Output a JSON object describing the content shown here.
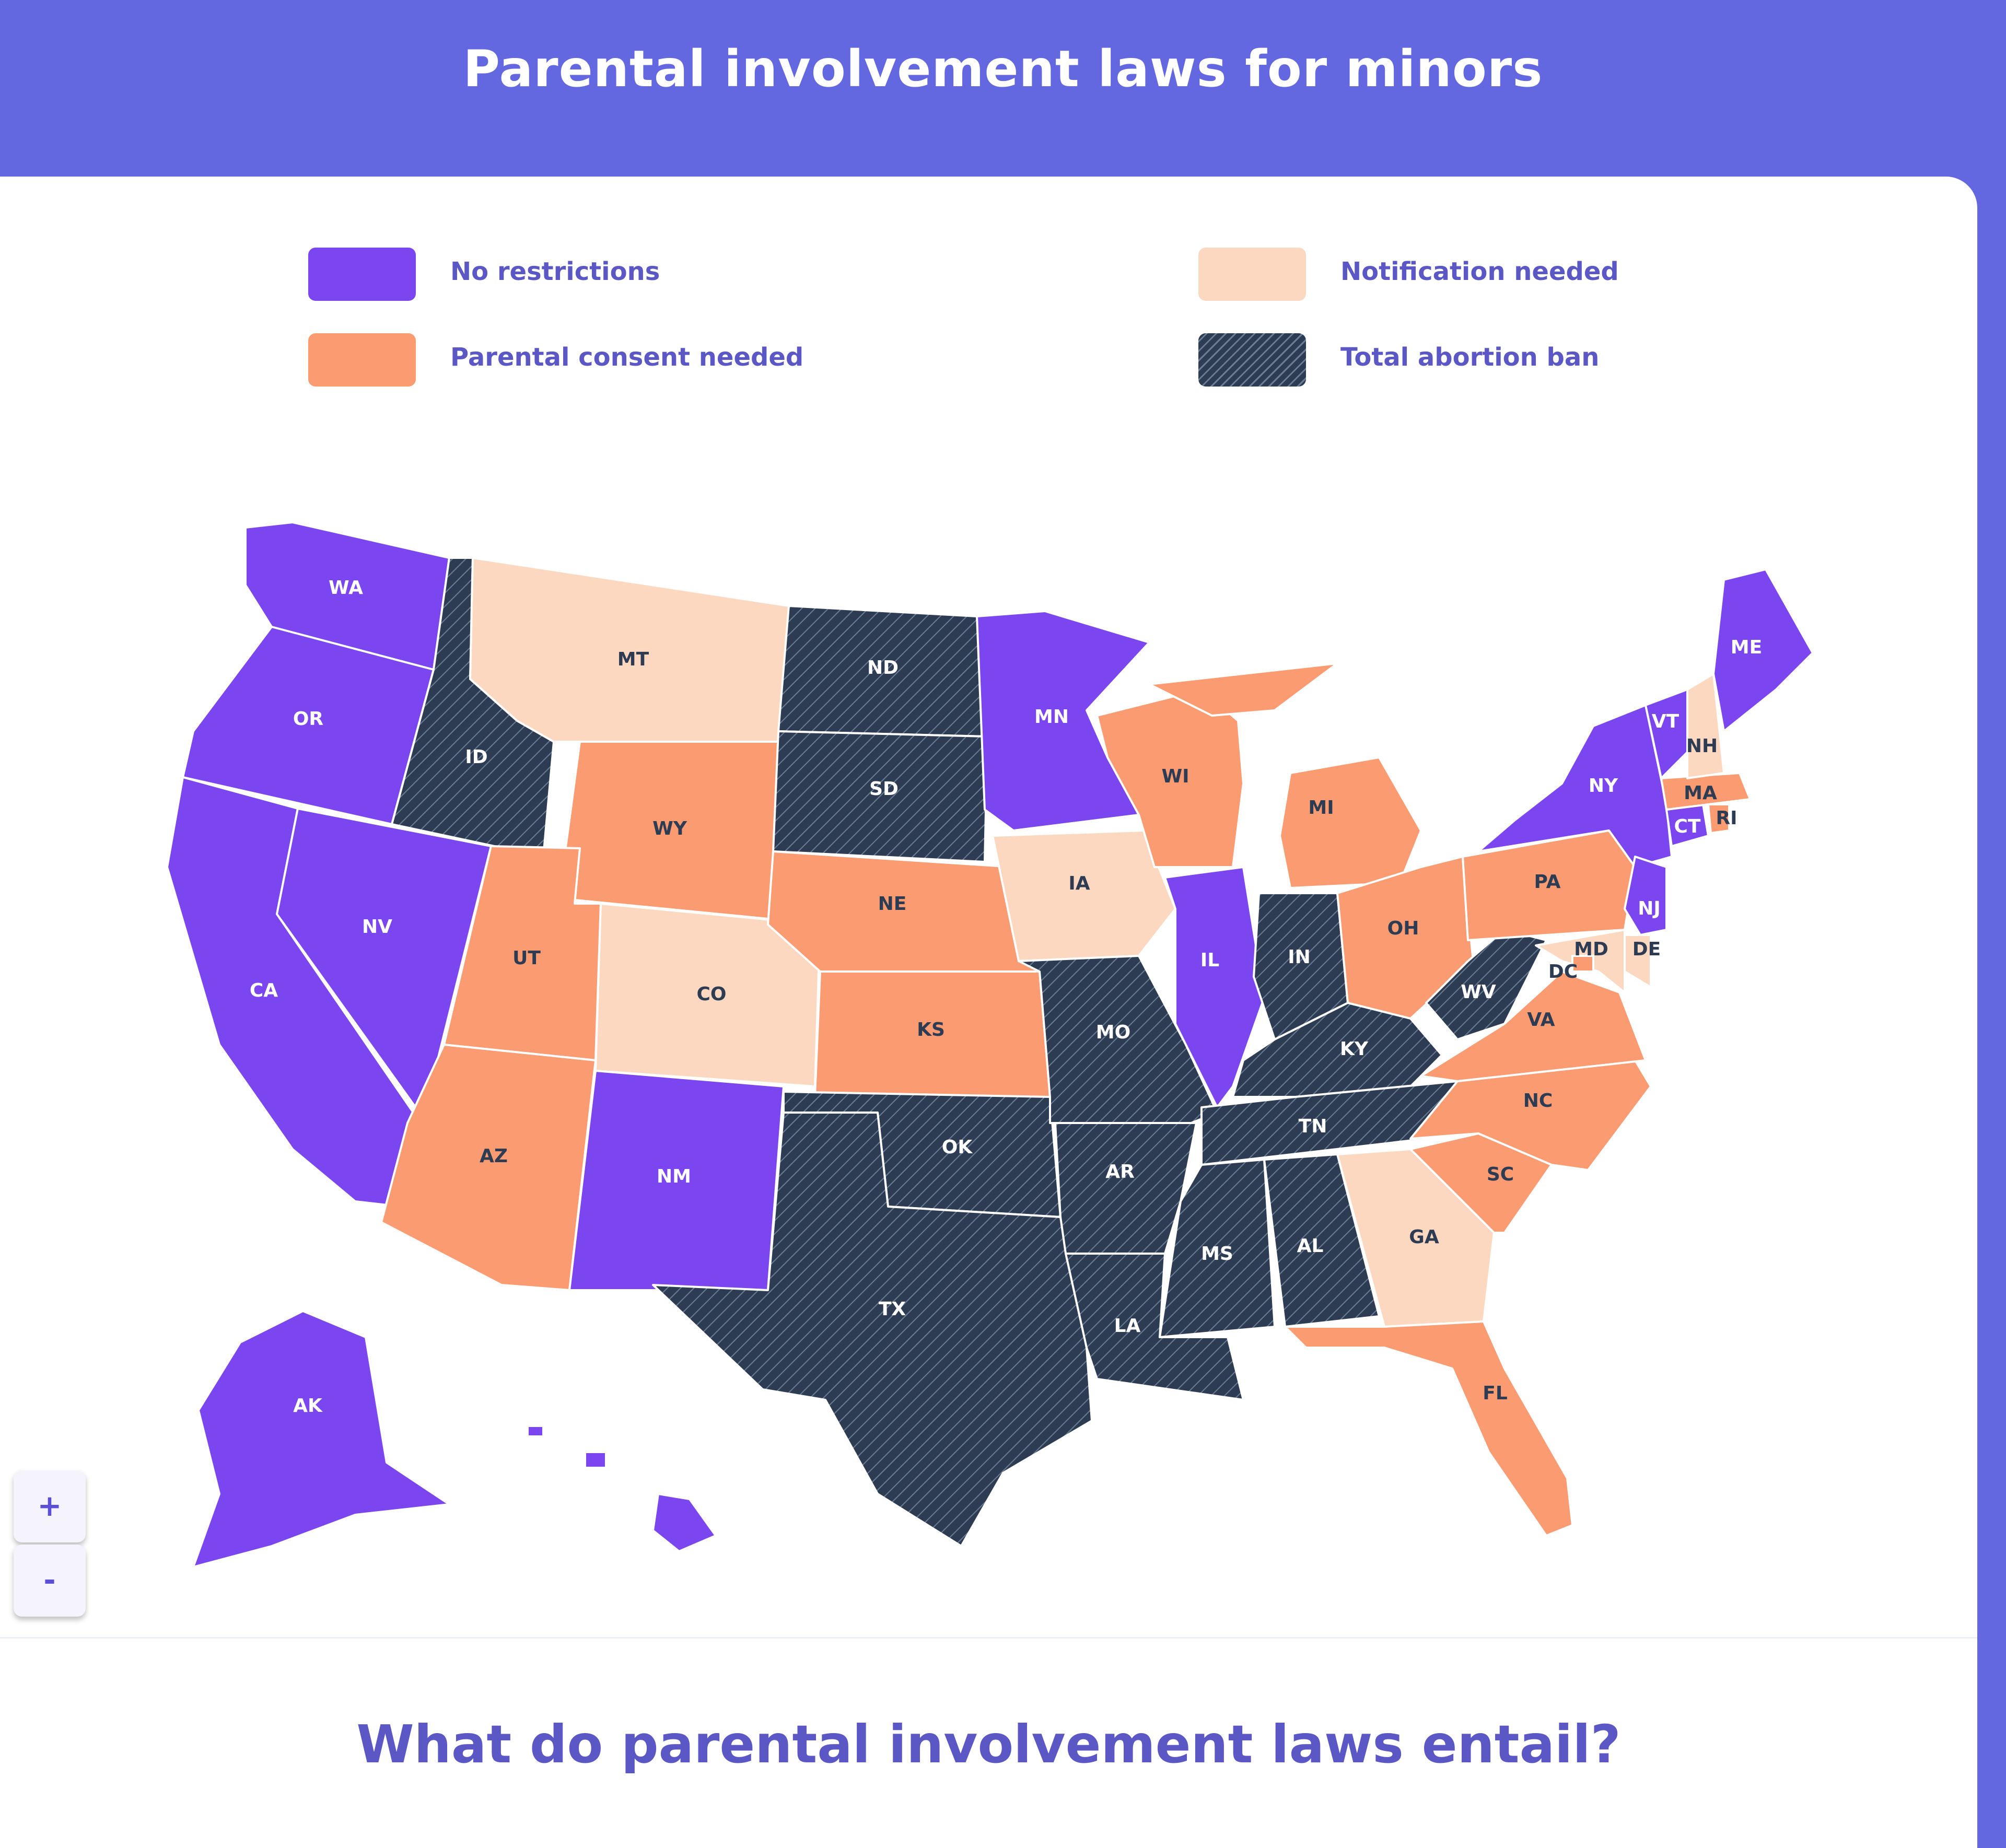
{
  "header": {
    "title": "Parental involvement laws for minors"
  },
  "legend": [
    {
      "key": "none",
      "label": "No restrictions",
      "color": "#7b45f0"
    },
    {
      "key": "notify",
      "label": "Notification needed",
      "color": "#fdd8c1"
    },
    {
      "key": "consent",
      "label": "Parental consent needed",
      "color": "#fa9b72"
    },
    {
      "key": "ban",
      "label": "Total abortion ban",
      "color": "#2d3c52"
    }
  ],
  "colors": {
    "none": "#7b45f0",
    "notify": "#fdd8c1",
    "consent": "#fa9b72",
    "ban": "#2d3c52"
  },
  "states": [
    {
      "abbr": "WA",
      "category": "none"
    },
    {
      "abbr": "OR",
      "category": "none"
    },
    {
      "abbr": "CA",
      "category": "none"
    },
    {
      "abbr": "NV",
      "category": "none"
    },
    {
      "abbr": "ID",
      "category": "ban"
    },
    {
      "abbr": "MT",
      "category": "notify"
    },
    {
      "abbr": "WY",
      "category": "consent"
    },
    {
      "abbr": "UT",
      "category": "consent"
    },
    {
      "abbr": "AZ",
      "category": "consent"
    },
    {
      "abbr": "CO",
      "category": "notify"
    },
    {
      "abbr": "NM",
      "category": "none"
    },
    {
      "abbr": "ND",
      "category": "ban"
    },
    {
      "abbr": "SD",
      "category": "ban"
    },
    {
      "abbr": "NE",
      "category": "consent"
    },
    {
      "abbr": "KS",
      "category": "consent"
    },
    {
      "abbr": "OK",
      "category": "ban"
    },
    {
      "abbr": "TX",
      "category": "ban"
    },
    {
      "abbr": "MN",
      "category": "none"
    },
    {
      "abbr": "IA",
      "category": "notify"
    },
    {
      "abbr": "MO",
      "category": "ban"
    },
    {
      "abbr": "AR",
      "category": "ban"
    },
    {
      "abbr": "LA",
      "category": "ban"
    },
    {
      "abbr": "WI",
      "category": "consent"
    },
    {
      "abbr": "IL",
      "category": "none"
    },
    {
      "abbr": "MI",
      "category": "consent"
    },
    {
      "abbr": "IN",
      "category": "ban"
    },
    {
      "abbr": "OH",
      "category": "consent"
    },
    {
      "abbr": "KY",
      "category": "ban"
    },
    {
      "abbr": "TN",
      "category": "ban"
    },
    {
      "abbr": "MS",
      "category": "ban"
    },
    {
      "abbr": "AL",
      "category": "ban"
    },
    {
      "abbr": "GA",
      "category": "notify"
    },
    {
      "abbr": "FL",
      "category": "consent"
    },
    {
      "abbr": "SC",
      "category": "consent"
    },
    {
      "abbr": "NC",
      "category": "consent"
    },
    {
      "abbr": "VA",
      "category": "consent"
    },
    {
      "abbr": "WV",
      "category": "ban"
    },
    {
      "abbr": "PA",
      "category": "consent"
    },
    {
      "abbr": "NY",
      "category": "none"
    },
    {
      "abbr": "NJ",
      "category": "none"
    },
    {
      "abbr": "DE",
      "category": "notify"
    },
    {
      "abbr": "MD",
      "category": "notify"
    },
    {
      "abbr": "DC",
      "category": "consent"
    },
    {
      "abbr": "CT",
      "category": "none"
    },
    {
      "abbr": "RI",
      "category": "consent"
    },
    {
      "abbr": "MA",
      "category": "consent"
    },
    {
      "abbr": "VT",
      "category": "none"
    },
    {
      "abbr": "NH",
      "category": "notify"
    },
    {
      "abbr": "ME",
      "category": "none"
    },
    {
      "abbr": "AK",
      "category": "none"
    },
    {
      "abbr": "HI",
      "category": "none"
    }
  ],
  "controls": {
    "zoom_in": "+",
    "zoom_out": "-"
  },
  "section": {
    "heading": "What do parental involvement laws entail?"
  }
}
